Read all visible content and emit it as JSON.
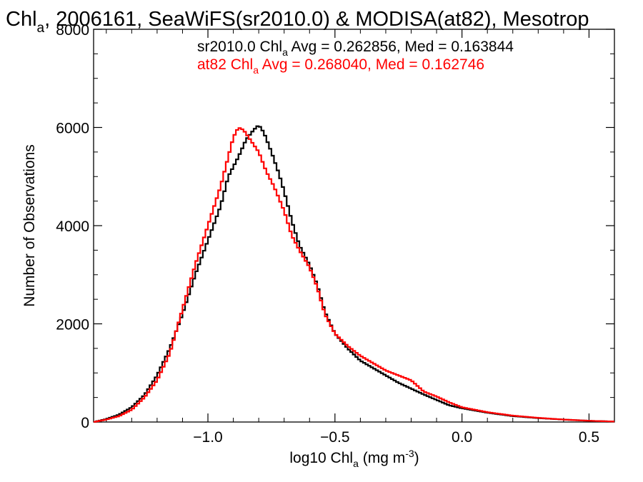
{
  "title": {
    "prefix": "Chl",
    "sub": "a",
    "rest": ", 2006161, SeaWiFS(sr2010.0) & MODISA(at82), Mesotrop"
  },
  "xlabel": {
    "prefix": "log10 Chl",
    "sub": "a",
    "mid": " (mg m",
    "sup": "-3",
    "end": ")"
  },
  "ylabel": "Number of Observations",
  "annotations": [
    {
      "prefix": "sr2010.0 Chl",
      "sub": "a",
      "rest": " Avg = 0.262856, Med = 0.163844",
      "color": "#000000"
    },
    {
      "prefix": "at82 Chl",
      "sub": "a",
      "rest": " Avg = 0.268040, Med = 0.162746",
      "color": "#ff0000"
    }
  ],
  "chart_data": {
    "type": "line",
    "step": true,
    "xlim": [
      -1.45,
      0.6
    ],
    "ylim": [
      0,
      8000
    ],
    "xticks": [
      -1.0,
      -0.5,
      0.0,
      0.5
    ],
    "xtick_labels": [
      "−1.0",
      "−0.5",
      "0.0",
      "0.5"
    ],
    "yticks": [
      0,
      2000,
      4000,
      6000,
      8000
    ],
    "ytick_labels": [
      "0",
      "2000",
      "4000",
      "6000",
      "8000"
    ],
    "series": [
      {
        "name": "sr2010.0",
        "color": "#000000",
        "points": [
          [
            -1.45,
            0
          ],
          [
            -1.4,
            60
          ],
          [
            -1.35,
            150
          ],
          [
            -1.3,
            300
          ],
          [
            -1.25,
            550
          ],
          [
            -1.2,
            950
          ],
          [
            -1.15,
            1500
          ],
          [
            -1.1,
            2200
          ],
          [
            -1.05,
            3000
          ],
          [
            -1.0,
            3700
          ],
          [
            -0.95,
            4400
          ],
          [
            -0.92,
            5000
          ],
          [
            -0.88,
            5400
          ],
          [
            -0.85,
            5750
          ],
          [
            -0.82,
            5950
          ],
          [
            -0.8,
            6050
          ],
          [
            -0.78,
            5900
          ],
          [
            -0.75,
            5500
          ],
          [
            -0.72,
            5050
          ],
          [
            -0.7,
            4700
          ],
          [
            -0.67,
            4100
          ],
          [
            -0.64,
            3600
          ],
          [
            -0.6,
            3200
          ],
          [
            -0.57,
            2800
          ],
          [
            -0.54,
            2250
          ],
          [
            -0.5,
            1800
          ],
          [
            -0.45,
            1500
          ],
          [
            -0.4,
            1250
          ],
          [
            -0.35,
            1100
          ],
          [
            -0.3,
            950
          ],
          [
            -0.25,
            800
          ],
          [
            -0.2,
            680
          ],
          [
            -0.15,
            560
          ],
          [
            -0.1,
            450
          ],
          [
            -0.05,
            340
          ],
          [
            0.0,
            280
          ],
          [
            0.1,
            190
          ],
          [
            0.2,
            120
          ],
          [
            0.3,
            80
          ],
          [
            0.4,
            50
          ],
          [
            0.5,
            25
          ],
          [
            0.6,
            10
          ]
        ]
      },
      {
        "name": "at82",
        "color": "#ff0000",
        "points": [
          [
            -1.45,
            0
          ],
          [
            -1.4,
            50
          ],
          [
            -1.35,
            120
          ],
          [
            -1.3,
            250
          ],
          [
            -1.25,
            500
          ],
          [
            -1.2,
            850
          ],
          [
            -1.15,
            1400
          ],
          [
            -1.1,
            2300
          ],
          [
            -1.05,
            3200
          ],
          [
            -1.0,
            4000
          ],
          [
            -0.95,
            4800
          ],
          [
            -0.92,
            5400
          ],
          [
            -0.9,
            5800
          ],
          [
            -0.88,
            6000
          ],
          [
            -0.86,
            5950
          ],
          [
            -0.84,
            5800
          ],
          [
            -0.8,
            5500
          ],
          [
            -0.77,
            5100
          ],
          [
            -0.74,
            4800
          ],
          [
            -0.7,
            4300
          ],
          [
            -0.67,
            3800
          ],
          [
            -0.64,
            3500
          ],
          [
            -0.6,
            3150
          ],
          [
            -0.57,
            2750
          ],
          [
            -0.54,
            2200
          ],
          [
            -0.5,
            1800
          ],
          [
            -0.45,
            1550
          ],
          [
            -0.4,
            1350
          ],
          [
            -0.35,
            1200
          ],
          [
            -0.3,
            1050
          ],
          [
            -0.25,
            950
          ],
          [
            -0.2,
            850
          ],
          [
            -0.15,
            620
          ],
          [
            -0.1,
            520
          ],
          [
            -0.05,
            400
          ],
          [
            0.0,
            300
          ],
          [
            0.1,
            200
          ],
          [
            0.2,
            130
          ],
          [
            0.3,
            85
          ],
          [
            0.4,
            50
          ],
          [
            0.5,
            25
          ],
          [
            0.6,
            10
          ]
        ]
      }
    ]
  }
}
